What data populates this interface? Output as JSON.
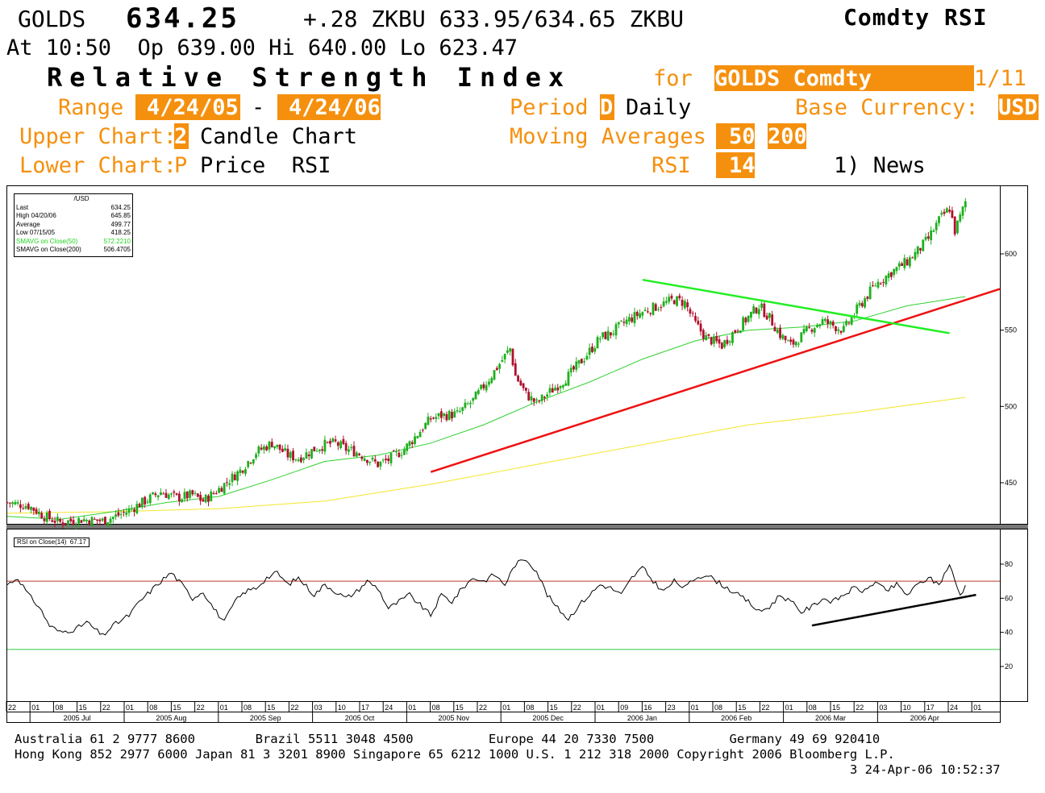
{
  "header": {
    "ticker": "GOLDS",
    "price": "634.25",
    "quote": "+.28 ZKBU 633.95/634.65 ZKBU",
    "function": "Comdty RSI",
    "line2": "At 10:50  Op 639.00 Hi 640.00 Lo 623.47",
    "title": "Relative Strength Index",
    "for_label": "for",
    "security": "GOLDS Comdty",
    "page": "1/11",
    "range_label": "Range",
    "range_start": "4/24/05",
    "range_dash": "-",
    "range_end": "4/24/06",
    "period_label": "Period",
    "period_code": "D",
    "period_value": "Daily",
    "base_label": "Base Currency:",
    "base_value": "USD",
    "upper_label": "Upper Chart:",
    "upper_code": "2",
    "upper_value": "Candle Chart",
    "ma_label": "Moving Averages",
    "ma1": "50",
    "ma2": "200",
    "lower_label": "Lower Chart:",
    "lower_code": "P",
    "lower_value": "Price  RSI",
    "rsi_label": "RSI",
    "rsi_value": "14",
    "news": "1) News"
  },
  "legend": {
    "header": "/USD",
    "rows": [
      {
        "label": "Last",
        "value": "634.25",
        "color": "#000000"
      },
      {
        "label": "High  04/20/06",
        "value": "645.85",
        "color": "#000000"
      },
      {
        "label": "Average",
        "value": "499.77",
        "color": "#000000"
      },
      {
        "label": "Low  07/15/05",
        "value": "418.25",
        "color": "#000000"
      },
      {
        "label": "SMAVG on Close(50)",
        "value": "572.2210",
        "color": "#1fd31f"
      },
      {
        "label": "SMAVG on Close(200)",
        "value": "506.4705",
        "color": "#000000"
      }
    ]
  },
  "rsi_legend": "RSI on Close(14)  67.17",
  "colors": {
    "orange": "#f5900e",
    "up": "#1db01d",
    "down": "#b0102c",
    "ma50": "#2fd12f",
    "ma200": "#f2e62a",
    "trend_red": "#ee1111",
    "trend_green": "#22ee22"
  },
  "chart_data": [
    {
      "type": "candlestick",
      "y_ticks": [
        450,
        500,
        550,
        600
      ],
      "ylim": [
        422,
        645
      ],
      "x_ticks": [
        "22",
        "01",
        "08",
        "15",
        "22",
        "01",
        "08",
        "15",
        "22",
        "01",
        "08",
        "15",
        "22",
        "03",
        "10",
        "17",
        "24",
        "01",
        "08",
        "15",
        "22",
        "01",
        "08",
        "15",
        "22",
        "01",
        "09",
        "16",
        "23",
        "01",
        "08",
        "15",
        "22",
        "01",
        "08",
        "15",
        "22",
        "03",
        "10",
        "17",
        "24",
        "01"
      ],
      "months": [
        "2005 Jul",
        "2005 Aug",
        "2005 Sep",
        "2005 Oct",
        "2005 Nov",
        "2005 Dec",
        "2006 Jan",
        "2006 Feb",
        "2006 Mar",
        "2006 Apr"
      ],
      "close_path": [
        [
          0,
          437
        ],
        [
          8,
          435
        ],
        [
          14,
          428
        ],
        [
          20,
          424
        ],
        [
          28,
          426
        ],
        [
          36,
          425
        ],
        [
          44,
          430
        ],
        [
          52,
          438
        ],
        [
          58,
          444
        ],
        [
          64,
          440
        ],
        [
          70,
          442
        ],
        [
          74,
          438
        ],
        [
          80,
          446
        ],
        [
          88,
          458
        ],
        [
          94,
          470
        ],
        [
          100,
          476
        ],
        [
          106,
          468
        ],
        [
          110,
          466
        ],
        [
          116,
          472
        ],
        [
          120,
          475
        ],
        [
          124,
          476
        ],
        [
          128,
          472
        ],
        [
          132,
          470
        ],
        [
          136,
          466
        ],
        [
          140,
          462
        ],
        [
          144,
          465
        ],
        [
          150,
          472
        ],
        [
          156,
          484
        ],
        [
          160,
          492
        ],
        [
          164,
          494
        ],
        [
          170,
          495
        ],
        [
          176,
          504
        ],
        [
          182,
          518
        ],
        [
          186,
          528
        ],
        [
          190,
          538
        ],
        [
          192,
          520
        ],
        [
          196,
          508
        ],
        [
          200,
          502
        ],
        [
          204,
          508
        ],
        [
          208,
          514
        ],
        [
          212,
          520
        ],
        [
          218,
          532
        ],
        [
          224,
          545
        ],
        [
          228,
          548
        ],
        [
          234,
          556
        ],
        [
          240,
          562
        ],
        [
          246,
          566
        ],
        [
          252,
          570
        ],
        [
          256,
          568
        ],
        [
          260,
          554
        ],
        [
          264,
          545
        ],
        [
          270,
          540
        ],
        [
          274,
          548
        ],
        [
          278,
          555
        ],
        [
          284,
          566
        ],
        [
          288,
          558
        ],
        [
          292,
          547
        ],
        [
          296,
          540
        ],
        [
          300,
          546
        ],
        [
          304,
          552
        ],
        [
          308,
          556
        ],
        [
          312,
          553
        ],
        [
          316,
          550
        ],
        [
          322,
          566
        ],
        [
          328,
          580
        ],
        [
          334,
          588
        ],
        [
          340,
          595
        ],
        [
          344,
          602
        ],
        [
          348,
          610
        ],
        [
          352,
          622
        ],
        [
          356,
          630
        ],
        [
          358,
          615
        ],
        [
          360,
          624
        ],
        [
          362,
          634
        ]
      ],
      "ma50": [
        [
          0,
          428
        ],
        [
          20,
          426
        ],
        [
          40,
          431
        ],
        [
          60,
          437
        ],
        [
          80,
          441
        ],
        [
          100,
          452
        ],
        [
          120,
          464
        ],
        [
          140,
          468
        ],
        [
          160,
          476
        ],
        [
          180,
          488
        ],
        [
          200,
          503
        ],
        [
          220,
          516
        ],
        [
          240,
          531
        ],
        [
          260,
          543
        ],
        [
          280,
          550
        ],
        [
          300,
          552
        ],
        [
          320,
          556
        ],
        [
          340,
          566
        ],
        [
          362,
          572
        ]
      ],
      "ma200": [
        [
          0,
          430
        ],
        [
          40,
          431
        ],
        [
          80,
          433
        ],
        [
          120,
          438
        ],
        [
          160,
          449
        ],
        [
          200,
          462
        ],
        [
          240,
          475
        ],
        [
          280,
          488
        ],
        [
          320,
          496
        ],
        [
          362,
          506
        ]
      ],
      "trendlines": [
        {
          "color": "red",
          "from": [
            160,
            457
          ],
          "to": [
            375,
            577
          ]
        },
        {
          "color": "green",
          "from": [
            240,
            583
          ],
          "to": [
            356,
            548
          ]
        }
      ]
    },
    {
      "type": "line",
      "y_ticks": [
        20,
        40,
        60,
        80
      ],
      "ylim": [
        0,
        90
      ],
      "levels": [
        70,
        30
      ],
      "rsi_path": [
        [
          0,
          68
        ],
        [
          4,
          72
        ],
        [
          8,
          62
        ],
        [
          12,
          55
        ],
        [
          16,
          44
        ],
        [
          20,
          40
        ],
        [
          26,
          42
        ],
        [
          30,
          46
        ],
        [
          36,
          38
        ],
        [
          40,
          44
        ],
        [
          46,
          50
        ],
        [
          50,
          58
        ],
        [
          54,
          64
        ],
        [
          58,
          70
        ],
        [
          62,
          75
        ],
        [
          66,
          68
        ],
        [
          70,
          60
        ],
        [
          74,
          64
        ],
        [
          78,
          54
        ],
        [
          82,
          46
        ],
        [
          86,
          58
        ],
        [
          90,
          64
        ],
        [
          94,
          66
        ],
        [
          98,
          72
        ],
        [
          102,
          75
        ],
        [
          106,
          68
        ],
        [
          110,
          72
        ],
        [
          116,
          62
        ],
        [
          120,
          68
        ],
        [
          124,
          64
        ],
        [
          128,
          60
        ],
        [
          132,
          64
        ],
        [
          136,
          70
        ],
        [
          140,
          66
        ],
        [
          144,
          54
        ],
        [
          148,
          58
        ],
        [
          152,
          62
        ],
        [
          156,
          56
        ],
        [
          160,
          50
        ],
        [
          164,
          62
        ],
        [
          168,
          58
        ],
        [
          172,
          66
        ],
        [
          176,
          72
        ],
        [
          180,
          70
        ],
        [
          184,
          74
        ],
        [
          188,
          68
        ],
        [
          192,
          80
        ],
        [
          196,
          83
        ],
        [
          200,
          76
        ],
        [
          204,
          62
        ],
        [
          208,
          54
        ],
        [
          212,
          48
        ],
        [
          216,
          56
        ],
        [
          220,
          62
        ],
        [
          224,
          68
        ],
        [
          228,
          66
        ],
        [
          232,
          62
        ],
        [
          236,
          72
        ],
        [
          240,
          78
        ],
        [
          244,
          70
        ],
        [
          248,
          64
        ],
        [
          252,
          70
        ],
        [
          256,
          66
        ],
        [
          260,
          72
        ],
        [
          264,
          74
        ],
        [
          268,
          70
        ],
        [
          272,
          66
        ],
        [
          276,
          62
        ],
        [
          280,
          58
        ],
        [
          284,
          52
        ],
        [
          288,
          55
        ],
        [
          292,
          62
        ],
        [
          296,
          58
        ],
        [
          300,
          52
        ],
        [
          304,
          55
        ],
        [
          308,
          60
        ],
        [
          312,
          58
        ],
        [
          316,
          62
        ],
        [
          320,
          66
        ],
        [
          324,
          64
        ],
        [
          328,
          70
        ],
        [
          332,
          64
        ],
        [
          336,
          68
        ],
        [
          340,
          62
        ],
        [
          344,
          68
        ],
        [
          348,
          72
        ],
        [
          352,
          68
        ],
        [
          356,
          80
        ],
        [
          358,
          70
        ],
        [
          360,
          62
        ],
        [
          362,
          67
        ]
      ],
      "trendline": {
        "from": [
          304,
          44
        ],
        "to": [
          366,
          62
        ]
      }
    }
  ],
  "footer": {
    "line1": "Australia 61 2 9777 8600        Brazil 5511 3048 4500          Europe 44 20 7330 7500          Germany 49 69 920410",
    "line2": "Hong Kong 852 2977 6000 Japan 81 3 3201 8900 Singapore 65 6212 1000 U.S. 1 212 318 2000 Copyright 2006 Bloomberg L.P.",
    "line3": "3 24-Apr-06 10:52:37"
  }
}
